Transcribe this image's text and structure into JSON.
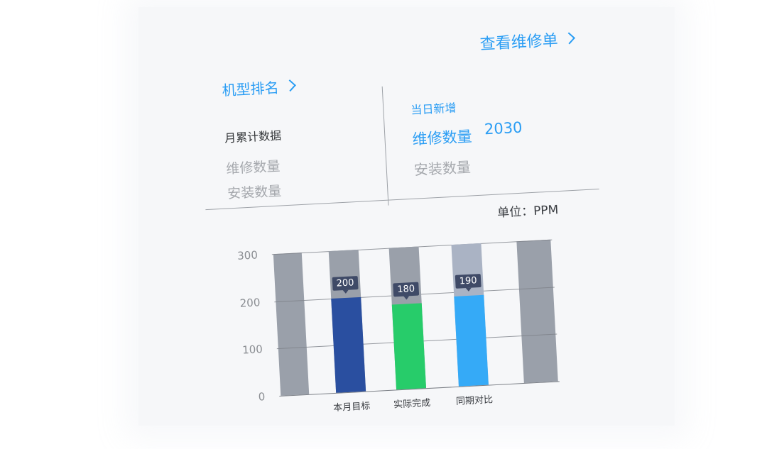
{
  "header": {
    "view_repair_orders": "查看维修单",
    "model_ranking": "机型排名"
  },
  "left_panel": {
    "title": "月累计数据",
    "repair_count_label": "维修数量",
    "install_count_label": "安装数量"
  },
  "right_panel": {
    "title": "当日新增",
    "repair_count_label": "维修数量",
    "repair_count_value": "2030",
    "install_count_label": "安装数量"
  },
  "unit": "单位：PPM",
  "colors": {
    "accent": "#2a9df4",
    "bar_target": "#2a4fa0",
    "bar_actual": "#27cc6a",
    "bar_compare": "#35aaf7",
    "column_bg": "#9aa0aa",
    "column_bg_light": "#aab3c4"
  },
  "chart_data": {
    "type": "bar",
    "categories": [
      "本月目标",
      "实际完成",
      "同期对比"
    ],
    "values": [
      200,
      180,
      190
    ],
    "data_labels": [
      "200",
      "180",
      "190"
    ],
    "ylim": [
      0,
      300
    ],
    "yticks": [
      "0",
      "100",
      "200",
      "300"
    ],
    "grid": true
  }
}
